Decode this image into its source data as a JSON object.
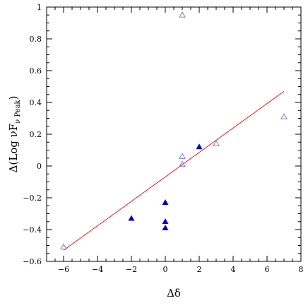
{
  "chart_data": {
    "type": "scatter",
    "xlabel": "Δδ",
    "ylabel": {
      "prefix": "Δ(Log  νF",
      "subscript": "ν Peak",
      "suffix": ")"
    },
    "xlim": [
      -7,
      8
    ],
    "ylim": [
      -0.6,
      1.0
    ],
    "x_ticks": [
      -6,
      -4,
      -2,
      0,
      2,
      4,
      6,
      8
    ],
    "x_tick_labels": [
      "−6",
      "−4",
      "−2",
      "0",
      "2",
      "4",
      "6",
      "8"
    ],
    "y_ticks": [
      -0.6,
      -0.4,
      -0.2,
      0,
      0.2,
      0.4,
      0.6,
      0.8,
      1.0
    ],
    "y_tick_labels": [
      "−0.6",
      "−0.4",
      "−0.2",
      "0",
      "0.2",
      "0.4",
      "0.6",
      "0.8",
      "1"
    ],
    "grid": false,
    "series": [
      {
        "marker": "filled-triangle",
        "color": "#0000cc",
        "points": [
          {
            "x": -2,
            "y": -0.33
          },
          {
            "x": 0,
            "y": -0.23
          },
          {
            "x": 0,
            "y": -0.35
          },
          {
            "x": 0,
            "y": -0.39
          },
          {
            "x": 2,
            "y": 0.12
          }
        ]
      },
      {
        "marker": "open-triangle",
        "color": "#6f6fd8",
        "points": [
          {
            "x": -6,
            "y": -0.51
          },
          {
            "x": 1,
            "y": 0.95
          },
          {
            "x": 1,
            "y": 0.06
          },
          {
            "x": 1,
            "y": 0.01
          },
          {
            "x": 3,
            "y": 0.14
          },
          {
            "x": 7,
            "y": 0.31
          }
        ]
      }
    ],
    "fit_line": {
      "color": "#ff0000",
      "x1": -6,
      "y1": -0.53,
      "x2": 7,
      "y2": 0.47
    }
  }
}
